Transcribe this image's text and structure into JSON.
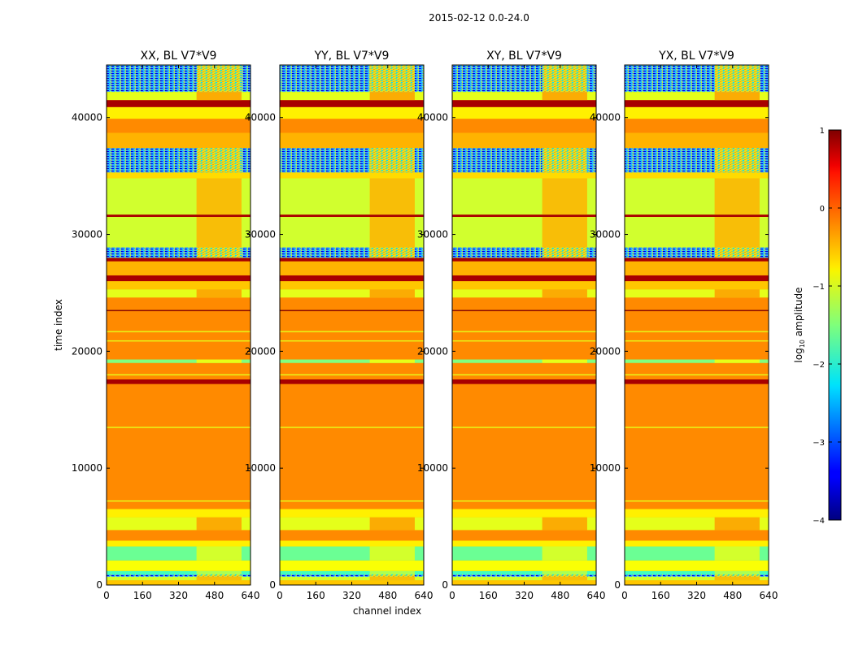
{
  "figure": {
    "suptitle": "2015-02-12 0.0-24.0",
    "xlabel": "channel index",
    "ylabel": "time index"
  },
  "chart_data": {
    "type": "heatmap",
    "xlim": [
      0,
      640
    ],
    "ylim": [
      0,
      44500
    ],
    "xticks": [
      0,
      160,
      320,
      480,
      640
    ],
    "xtick_labels": [
      "0",
      "160",
      "320",
      "480",
      "640"
    ],
    "yticks": [
      0,
      10000,
      20000,
      30000,
      40000
    ],
    "ytick_labels": [
      "0",
      "10000",
      "20000",
      "30000",
      "40000"
    ],
    "panels": [
      {
        "title": "XX, BL V7*V9"
      },
      {
        "title": "YY, BL V7*V9"
      },
      {
        "title": "XY, BL V7*V9"
      },
      {
        "title": "YX, BL V7*V9"
      }
    ],
    "colorbar": {
      "label_main": "log",
      "label_sub": "10",
      "label_tail": " amplitude",
      "vmin": -4,
      "vmax": 1,
      "ticks": [
        1,
        0,
        -1,
        -2,
        -3,
        -4
      ],
      "tick_labels": [
        "1",
        "0",
        "−1",
        "−2",
        "−3",
        "−4"
      ]
    },
    "noisy_column_range": [
      400,
      600
    ],
    "time_bands": [
      {
        "from": 0,
        "to": 400,
        "level": -0.6
      },
      {
        "from": 400,
        "to": 700,
        "level": -1.1
      },
      {
        "from": 700,
        "to": 900,
        "level": -3.3
      },
      {
        "from": 900,
        "to": 1200,
        "level": -1.8
      },
      {
        "from": 1200,
        "to": 2100,
        "level": -0.9
      },
      {
        "from": 2100,
        "to": 3300,
        "level": -1.6
      },
      {
        "from": 3300,
        "to": 3800,
        "level": -0.8
      },
      {
        "from": 3800,
        "to": 4700,
        "level": -0.3
      },
      {
        "from": 4700,
        "to": 5800,
        "level": -1.0
      },
      {
        "from": 5800,
        "to": 6500,
        "level": -0.8
      },
      {
        "from": 6500,
        "to": 17200,
        "level": -0.3
      },
      {
        "from": 17200,
        "to": 17600,
        "level": 0.8
      },
      {
        "from": 17600,
        "to": 19000,
        "level": -0.3
      },
      {
        "from": 19000,
        "to": 19300,
        "level": -1.5
      },
      {
        "from": 19300,
        "to": 24600,
        "level": -0.3
      },
      {
        "from": 24600,
        "to": 25300,
        "level": -1.0
      },
      {
        "from": 25300,
        "to": 26000,
        "level": -0.6
      },
      {
        "from": 26000,
        "to": 26500,
        "level": 0.8
      },
      {
        "from": 26500,
        "to": 27700,
        "level": -0.5
      },
      {
        "from": 27700,
        "to": 28000,
        "level": 0.8
      },
      {
        "from": 28000,
        "to": 28900,
        "level": -2.8
      },
      {
        "from": 28900,
        "to": 31500,
        "level": -1.1
      },
      {
        "from": 31500,
        "to": 31700,
        "level": 0.8
      },
      {
        "from": 31700,
        "to": 34800,
        "level": -1.1
      },
      {
        "from": 34800,
        "to": 35300,
        "level": -0.7
      },
      {
        "from": 35300,
        "to": 37400,
        "level": -2.8
      },
      {
        "from": 37400,
        "to": 38700,
        "level": -0.5
      },
      {
        "from": 38700,
        "to": 39900,
        "level": -0.3
      },
      {
        "from": 39900,
        "to": 40900,
        "level": -0.8
      },
      {
        "from": 40900,
        "to": 41500,
        "level": 0.8
      },
      {
        "from": 41500,
        "to": 42200,
        "level": -1.0
      },
      {
        "from": 42200,
        "to": 44500,
        "level": -3.0
      }
    ],
    "thin_lines": [
      {
        "at": 7200,
        "level": -1.0
      },
      {
        "at": 13500,
        "level": -1.0
      },
      {
        "at": 18000,
        "level": -1.0
      },
      {
        "at": 20900,
        "level": -1.0
      },
      {
        "at": 21700,
        "level": -1.0
      },
      {
        "at": 23500,
        "level": 1.0
      }
    ]
  }
}
